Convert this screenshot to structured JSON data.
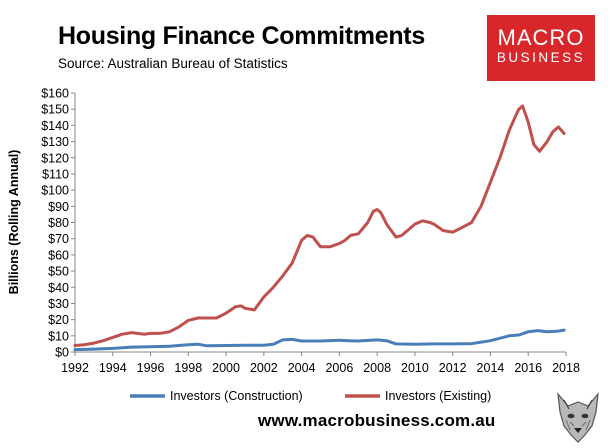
{
  "header": {
    "title": "Housing Finance Commitments",
    "source": "Source: Australian Bureau of Statistics"
  },
  "logo": {
    "line1": "MACRO",
    "line2": "BUSINESS",
    "bg_color": "#d7272b"
  },
  "footer": {
    "url": "www.macrobusiness.com.au"
  },
  "chart_data": {
    "type": "line",
    "title": "Housing Finance Commitments",
    "xlabel": "",
    "ylabel": "Billions (Rolling Annual)",
    "xlim": [
      1992,
      2018
    ],
    "ylim": [
      0,
      160
    ],
    "x_ticks": [
      1992,
      1994,
      1996,
      1998,
      2000,
      2002,
      2004,
      2006,
      2008,
      2010,
      2012,
      2014,
      2016,
      2018
    ],
    "x_tick_labels": [
      "1992",
      "1994",
      "1996",
      "1998",
      "2000",
      "2002",
      "2004",
      "2006",
      "2008",
      "2010",
      "2012",
      "2014",
      "2016",
      "2018"
    ],
    "y_ticks": [
      0,
      10,
      20,
      30,
      40,
      50,
      60,
      70,
      80,
      90,
      100,
      110,
      120,
      130,
      140,
      150,
      160
    ],
    "y_tick_labels": [
      "$0",
      "$10",
      "$20",
      "$30",
      "$40",
      "$50",
      "$60",
      "$70",
      "$80",
      "$90",
      "$100",
      "$110",
      "$120",
      "$130",
      "$140",
      "$150",
      "$160"
    ],
    "grid": false,
    "legend_position": "bottom",
    "series": [
      {
        "name": "Investors (Construction)",
        "color": "#4a7ebb",
        "points": [
          [
            1992,
            1.5
          ],
          [
            1993,
            1.8
          ],
          [
            1994,
            2.2
          ],
          [
            1995,
            3
          ],
          [
            1996,
            3.2
          ],
          [
            1997,
            3.5
          ],
          [
            1998,
            4.5
          ],
          [
            1998.5,
            4.8
          ],
          [
            1999,
            3.8
          ],
          [
            2000,
            4
          ],
          [
            2001,
            4.2
          ],
          [
            2002,
            4.2
          ],
          [
            2002.5,
            4.8
          ],
          [
            2003,
            7.5
          ],
          [
            2003.5,
            7.8
          ],
          [
            2004,
            6.8
          ],
          [
            2005,
            6.8
          ],
          [
            2006,
            7.2
          ],
          [
            2006.5,
            7
          ],
          [
            2007,
            6.8
          ],
          [
            2008,
            7.5
          ],
          [
            2008.5,
            7
          ],
          [
            2009,
            5
          ],
          [
            2010,
            4.8
          ],
          [
            2011,
            5
          ],
          [
            2012,
            5
          ],
          [
            2013,
            5.2
          ],
          [
            2014,
            7
          ],
          [
            2015,
            10
          ],
          [
            2015.5,
            10.5
          ],
          [
            2016,
            12.5
          ],
          [
            2016.5,
            13.2
          ],
          [
            2017,
            12.5
          ],
          [
            2017.5,
            12.8
          ],
          [
            2017.9,
            13.5
          ]
        ]
      },
      {
        "name": "Investors (Existing)",
        "color": "#c0504d",
        "points": [
          [
            1992,
            4
          ],
          [
            1992.5,
            4.5
          ],
          [
            1993,
            5.5
          ],
          [
            1993.5,
            7
          ],
          [
            1994,
            9
          ],
          [
            1994.5,
            11
          ],
          [
            1995,
            12
          ],
          [
            1995.3,
            11.5
          ],
          [
            1995.7,
            11
          ],
          [
            1996,
            11.5
          ],
          [
            1996.5,
            11.5
          ],
          [
            1997,
            12.5
          ],
          [
            1997.5,
            15.5
          ],
          [
            1998,
            19.5
          ],
          [
            1998.5,
            21
          ],
          [
            1999,
            21
          ],
          [
            1999.5,
            21
          ],
          [
            2000,
            24
          ],
          [
            2000.5,
            28
          ],
          [
            2000.8,
            28.5
          ],
          [
            2001,
            27
          ],
          [
            2001.5,
            26
          ],
          [
            2002,
            34
          ],
          [
            2002.5,
            40
          ],
          [
            2003,
            47
          ],
          [
            2003.5,
            55
          ],
          [
            2004,
            69
          ],
          [
            2004.3,
            72
          ],
          [
            2004.6,
            71
          ],
          [
            2005,
            65
          ],
          [
            2005.5,
            65
          ],
          [
            2006,
            67
          ],
          [
            2006.3,
            69
          ],
          [
            2006.6,
            72
          ],
          [
            2007,
            73
          ],
          [
            2007.5,
            80
          ],
          [
            2007.8,
            87
          ],
          [
            2008,
            88
          ],
          [
            2008.2,
            86
          ],
          [
            2008.5,
            79
          ],
          [
            2009,
            71
          ],
          [
            2009.3,
            72
          ],
          [
            2009.6,
            75
          ],
          [
            2010,
            79
          ],
          [
            2010.4,
            81
          ],
          [
            2010.8,
            80
          ],
          [
            2011,
            79
          ],
          [
            2011.5,
            75
          ],
          [
            2012,
            74
          ],
          [
            2012.5,
            77
          ],
          [
            2013,
            80
          ],
          [
            2013.5,
            90
          ],
          [
            2014,
            105
          ],
          [
            2014.5,
            120
          ],
          [
            2015,
            137
          ],
          [
            2015.3,
            145
          ],
          [
            2015.5,
            150
          ],
          [
            2015.7,
            152
          ],
          [
            2016,
            142
          ],
          [
            2016.3,
            128
          ],
          [
            2016.6,
            124
          ],
          [
            2017,
            130
          ],
          [
            2017.3,
            136
          ],
          [
            2017.6,
            139
          ],
          [
            2017.9,
            135
          ]
        ]
      }
    ]
  }
}
